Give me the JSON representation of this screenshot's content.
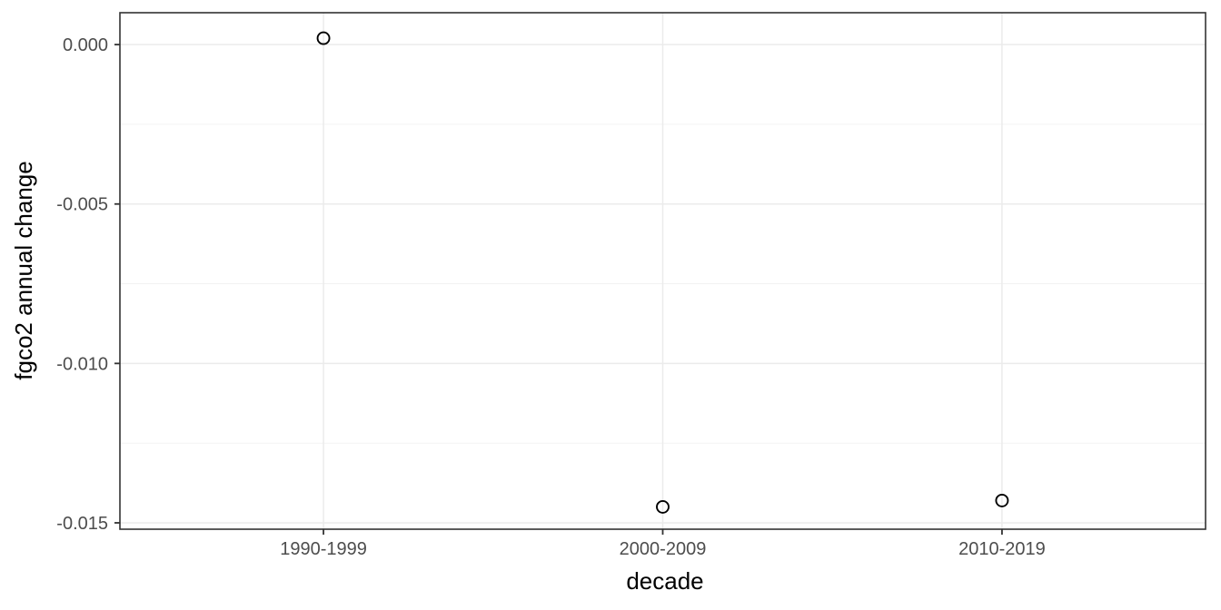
{
  "chart_data": {
    "type": "scatter",
    "title": "",
    "xlabel": "decade",
    "ylabel": "fgco2 annual change",
    "categories": [
      "1990-1999",
      "2000-2009",
      "2010-2019"
    ],
    "values": [
      0.0002,
      -0.0145,
      -0.0143
    ],
    "y_ticks": [
      {
        "value": 0.0,
        "label": "0.000"
      },
      {
        "value": -0.005,
        "label": "-0.005"
      },
      {
        "value": -0.01,
        "label": "-0.010"
      },
      {
        "value": -0.015,
        "label": "-0.015"
      }
    ],
    "y_minor_ticks": [
      -0.0025,
      -0.0075,
      -0.0125
    ],
    "ylim": [
      -0.0152,
      0.001
    ],
    "grid": true,
    "legend_position": "none",
    "marker": "open-circle",
    "style": {
      "background": "#FFFFFF",
      "panel_background": "#FFFFFF",
      "panel_border": "#333333",
      "grid_major_color": "#EBEBEB",
      "grid_minor_color": "#F1F1F1",
      "tick_mark_color": "#333333",
      "tick_label_color": "#4D4D4D",
      "axis_title_color": "#000000",
      "point_color": "#000000"
    }
  }
}
